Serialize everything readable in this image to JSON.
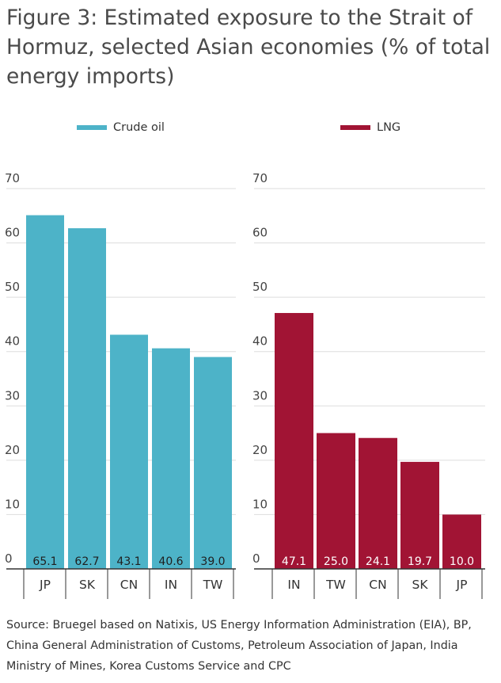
{
  "title": "Figure 3: Estimated exposure to the Strait of Hormuz, selected Asian economies (% of total energy imports)",
  "source": "Source: Bruegel based on Natixis, US Energy Information Administration (EIA), BP, China General Administration of Customs, Petroleum Association of Japan, India Ministry of Mines, Korea Customs Service and CPC",
  "colors": {
    "crude_oil": "#4db3c8",
    "lng": "#a11434",
    "grid": "#dddddd",
    "axis": "#333333"
  },
  "chart_data": [
    {
      "type": "bar",
      "categories": [
        "JP",
        "SK",
        "CN",
        "IN",
        "TW"
      ],
      "series": [
        {
          "name": "Crude oil",
          "values": [
            65.1,
            62.7,
            43.1,
            40.6,
            39.0
          ]
        }
      ],
      "data_labels": [
        "65.1",
        "62.7",
        "43.1",
        "40.6",
        "39.0"
      ],
      "yticks": [
        "0",
        "10",
        "20",
        "30",
        "40",
        "50",
        "60",
        "70"
      ],
      "ylim": [
        0,
        70
      ],
      "grid": true,
      "legend": "top"
    },
    {
      "type": "bar",
      "categories": [
        "IN",
        "TW",
        "CN",
        "SK",
        "JP"
      ],
      "series": [
        {
          "name": "LNG",
          "values": [
            47.1,
            25.0,
            24.1,
            19.7,
            10.0
          ]
        }
      ],
      "data_labels": [
        "47.1",
        "25.0",
        "24.1",
        "19.7",
        "10.0"
      ],
      "yticks": [
        "0",
        "10",
        "20",
        "30",
        "40",
        "50",
        "60",
        "70"
      ],
      "ylim": [
        0,
        70
      ],
      "grid": true,
      "legend": "top"
    }
  ]
}
